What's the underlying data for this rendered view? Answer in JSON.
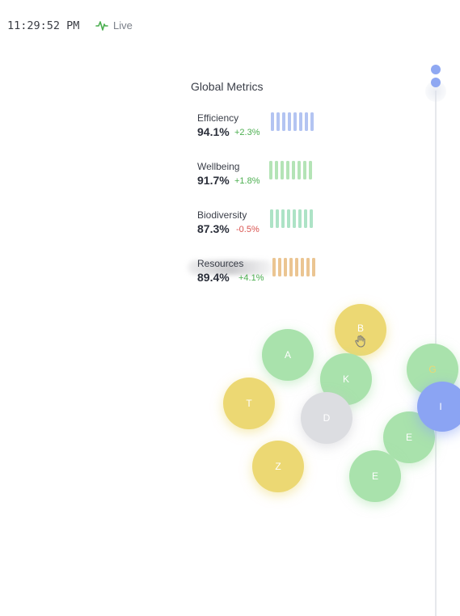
{
  "header": {
    "clock": "11:29:52 PM",
    "live_label": "Live",
    "live_icon": "activity-icon",
    "live_color": "#4caf50"
  },
  "panel": {
    "title": "Global Metrics",
    "metrics": [
      {
        "label": "Efficiency",
        "value": "94.1%",
        "delta": "+2.3%",
        "delta_color": "#4caf50",
        "bar_color": "#b3c4f2",
        "bar_count": 8
      },
      {
        "label": "Wellbeing",
        "value": "91.7%",
        "delta": "+1.8%",
        "delta_color": "#4caf50",
        "bar_color": "#b4e4b6",
        "bar_count": 8
      },
      {
        "label": "Biodiversity",
        "value": "87.3%",
        "delta": "-0.5%",
        "delta_color": "#d9534f",
        "bar_color": "#ade3c6",
        "bar_count": 8
      },
      {
        "label": "Resources",
        "value": "89.4%",
        "delta": "+4.1%",
        "delta_color": "#4caf50",
        "bar_color": "#ebc592",
        "bar_count": 8
      }
    ]
  },
  "bubbles": [
    {
      "letter": "B",
      "color": "yellow"
    },
    {
      "letter": "A",
      "color": "green"
    },
    {
      "letter": "K",
      "color": "green"
    },
    {
      "letter": "G",
      "color": "green"
    },
    {
      "letter": "T",
      "color": "yellow"
    },
    {
      "letter": "D",
      "color": "gray"
    },
    {
      "letter": "I",
      "color": "blue"
    },
    {
      "letter": "E",
      "color": "green"
    },
    {
      "letter": "Z",
      "color": "yellow"
    },
    {
      "letter": "E",
      "color": "green"
    }
  ],
  "timeline": {
    "dot_color": "#8fa8f2",
    "dots": 2
  }
}
